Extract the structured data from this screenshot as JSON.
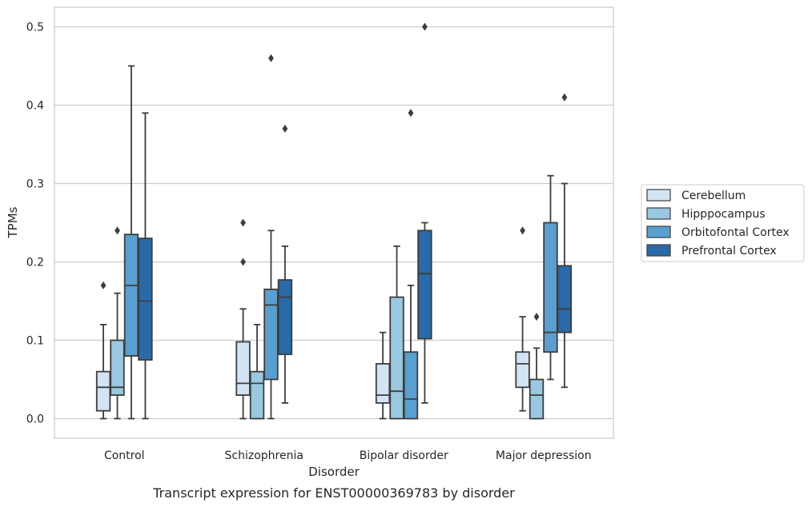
{
  "chart_data": {
    "type": "box",
    "title": "",
    "caption": "Transcript expression for ENST00000369783 by disorder",
    "xlabel": "Disorder",
    "ylabel": "TPMs",
    "ylim": [
      -0.025,
      0.525
    ],
    "yticks": [
      "0.0",
      "0.1",
      "0.2",
      "0.3",
      "0.4",
      "0.5"
    ],
    "ytick_values": [
      0,
      0.1,
      0.2,
      0.3,
      0.4,
      0.5
    ],
    "grid": "horizontal",
    "legend_position": "right",
    "categories": [
      "Control",
      "Schizophrenia",
      "Bipolar disorder",
      "Major depression"
    ],
    "series": [
      {
        "name": "Cerebellum",
        "color": "#d2e3f3",
        "boxes": [
          {
            "whisker_low": 0.0,
            "q1": 0.01,
            "median": 0.04,
            "q3": 0.06,
            "whisker_high": 0.12,
            "outliers": [
              0.17
            ]
          },
          {
            "whisker_low": 0.0,
            "q1": 0.03,
            "median": 0.045,
            "q3": 0.098,
            "whisker_high": 0.14,
            "outliers": [
              0.2,
              0.25
            ]
          },
          {
            "whisker_low": 0.0,
            "q1": 0.02,
            "median": 0.03,
            "q3": 0.07,
            "whisker_high": 0.11,
            "outliers": []
          },
          {
            "whisker_low": 0.01,
            "q1": 0.04,
            "median": 0.07,
            "q3": 0.085,
            "whisker_high": 0.13,
            "outliers": [
              0.24
            ]
          }
        ]
      },
      {
        "name": "Hipppocampus",
        "color": "#9ac8e0",
        "boxes": [
          {
            "whisker_low": 0.0,
            "q1": 0.03,
            "median": 0.04,
            "q3": 0.1,
            "whisker_high": 0.16,
            "outliers": [
              0.24
            ]
          },
          {
            "whisker_low": 0.0,
            "q1": 0.0,
            "median": 0.045,
            "q3": 0.06,
            "whisker_high": 0.12,
            "outliers": []
          },
          {
            "whisker_low": 0.0,
            "q1": 0.0,
            "median": 0.035,
            "q3": 0.155,
            "whisker_high": 0.22,
            "outliers": []
          },
          {
            "whisker_low": 0.0,
            "q1": 0.0,
            "median": 0.03,
            "q3": 0.05,
            "whisker_high": 0.09,
            "outliers": [
              0.13
            ]
          }
        ]
      },
      {
        "name": "Orbitofontal Cortex",
        "color": "#5a9fcf",
        "boxes": [
          {
            "whisker_low": 0.0,
            "q1": 0.08,
            "median": 0.17,
            "q3": 0.235,
            "whisker_high": 0.45,
            "outliers": []
          },
          {
            "whisker_low": 0.0,
            "q1": 0.05,
            "median": 0.145,
            "q3": 0.165,
            "whisker_high": 0.24,
            "outliers": [
              0.46
            ]
          },
          {
            "whisker_low": 0.0,
            "q1": 0.0,
            "median": 0.025,
            "q3": 0.085,
            "whisker_high": 0.17,
            "outliers": [
              0.39
            ]
          },
          {
            "whisker_low": 0.05,
            "q1": 0.085,
            "median": 0.11,
            "q3": 0.25,
            "whisker_high": 0.31,
            "outliers": []
          }
        ]
      },
      {
        "name": "Prefrontal Cortex",
        "color": "#2b6aa9",
        "boxes": [
          {
            "whisker_low": 0.0,
            "q1": 0.075,
            "median": 0.15,
            "q3": 0.23,
            "whisker_high": 0.39,
            "outliers": []
          },
          {
            "whisker_low": 0.02,
            "q1": 0.082,
            "median": 0.155,
            "q3": 0.177,
            "whisker_high": 0.22,
            "outliers": [
              0.37
            ]
          },
          {
            "whisker_low": 0.02,
            "q1": 0.102,
            "median": 0.185,
            "q3": 0.24,
            "whisker_high": 0.25,
            "outliers": [
              0.5
            ]
          },
          {
            "whisker_low": 0.04,
            "q1": 0.11,
            "median": 0.14,
            "q3": 0.195,
            "whisker_high": 0.3,
            "outliers": [
              0.41
            ]
          }
        ]
      }
    ]
  }
}
